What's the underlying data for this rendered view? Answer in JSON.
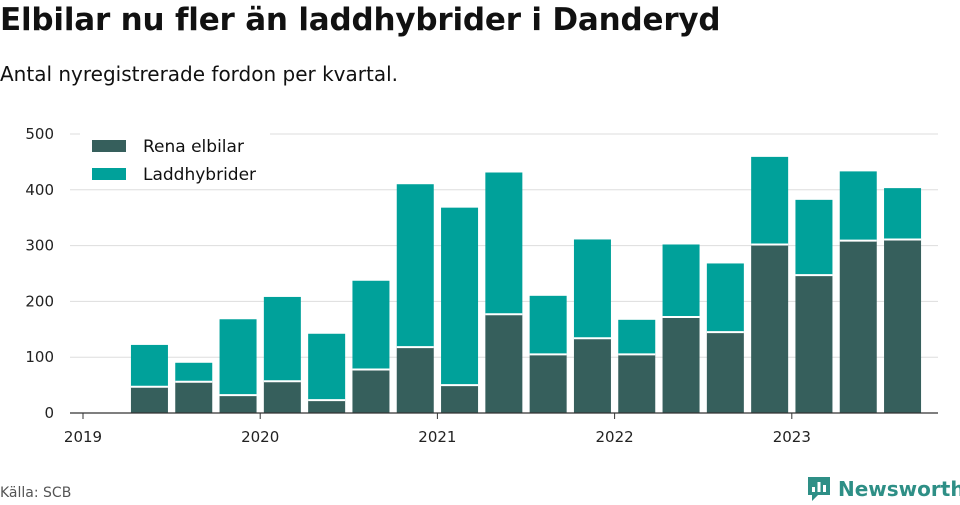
{
  "header": {
    "title": "Elbilar nu fler än laddhybrider i Danderyd",
    "subtitle": "Antal nyregistrerade fordon per kvartal."
  },
  "footer": {
    "source": "Källa: SCB",
    "brand": "Newsworthy",
    "brand_icon": "bar-chart-speech-bubble-icon"
  },
  "colors": {
    "elbilar": "#365f5c",
    "laddhybrider": "#00a19a",
    "grid": "#dddddd",
    "axis": "#333333",
    "brand": "#2e8f86"
  },
  "chart_data": {
    "type": "bar",
    "stacked": true,
    "title": "Elbilar nu fler än laddhybrider i Danderyd",
    "subtitle": "Antal nyregistrerade fordon per kvartal.",
    "xlabel": "",
    "ylabel": "",
    "ylim": [
      0,
      500
    ],
    "yticks": [
      "0",
      "100",
      "200",
      "300",
      "400",
      "500"
    ],
    "xticks": [
      "2019",
      "2020",
      "2021",
      "2022",
      "2023"
    ],
    "grid": true,
    "legend_position": "top-left",
    "quarters": [
      "2019 Q2",
      "2019 Q3",
      "2019 Q4",
      "2020 Q1",
      "2020 Q2",
      "2020 Q3",
      "2020 Q4",
      "2021 Q1",
      "2021 Q2",
      "2021 Q3",
      "2021 Q4",
      "2022 Q1",
      "2022 Q2",
      "2022 Q3",
      "2022 Q4",
      "2023 Q1",
      "2023 Q2",
      "2023 Q3"
    ],
    "series": [
      {
        "name": "Rena elbilar",
        "values": [
          47,
          56,
          32,
          57,
          23,
          78,
          118,
          50,
          177,
          105,
          134,
          105,
          172,
          145,
          302,
          247,
          309,
          311
        ]
      },
      {
        "name": "Laddhybrider",
        "values": [
          75,
          34,
          136,
          151,
          119,
          159,
          292,
          318,
          254,
          105,
          177,
          62,
          130,
          123,
          157,
          135,
          124,
          92
        ]
      }
    ]
  }
}
